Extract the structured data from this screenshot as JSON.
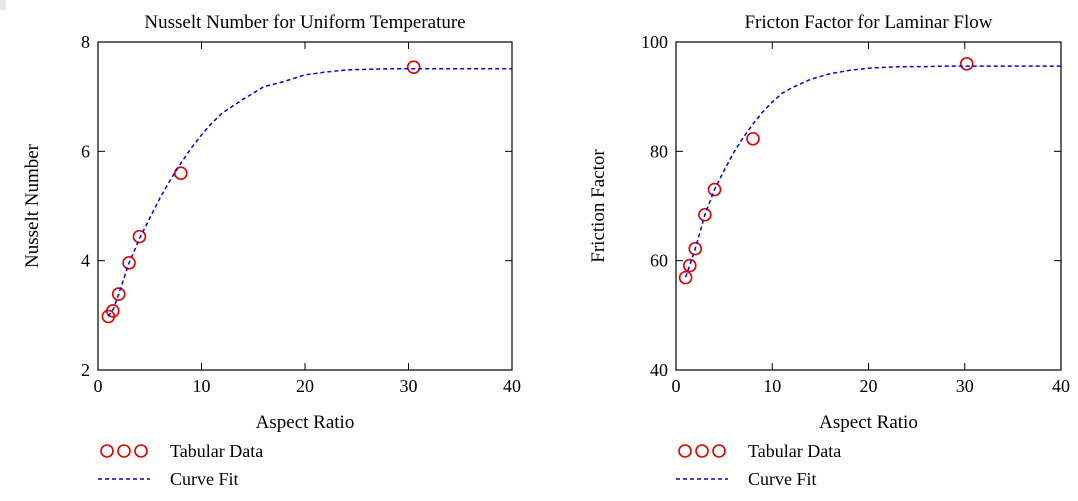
{
  "chart_data": [
    {
      "type": "scatter",
      "title": "Nusselt Number for Uniform Temperature",
      "xlabel": "Aspect Ratio",
      "ylabel": "Nusselt Number",
      "xlim": [
        0,
        40
      ],
      "ylim": [
        2,
        8
      ],
      "xticks": [
        "0",
        "10",
        "20",
        "30",
        "40"
      ],
      "yticks": [
        "2",
        "4",
        "6",
        "8"
      ],
      "grid": false,
      "legend_placement": "bottom-left",
      "series": [
        {
          "name": "Tabular Data",
          "kind": "markers",
          "color": "#e00000",
          "x": [
            1,
            1.43,
            2,
            3,
            4,
            8,
            30.5
          ],
          "y": [
            2.98,
            3.08,
            3.39,
            3.96,
            4.44,
            5.6,
            7.54
          ]
        },
        {
          "name": "Curve Fit",
          "kind": "dotted-line",
          "color": "#0000e0",
          "x": [
            1,
            1.5,
            2,
            3,
            4,
            5,
            6,
            7,
            8,
            9,
            10,
            11,
            12,
            14,
            16,
            18,
            20,
            22,
            24,
            26,
            28,
            30,
            32,
            34,
            36,
            38,
            40
          ],
          "y": [
            2.98,
            3.12,
            3.39,
            3.96,
            4.4,
            4.78,
            5.15,
            5.48,
            5.78,
            6.06,
            6.3,
            6.52,
            6.7,
            6.95,
            7.18,
            7.28,
            7.4,
            7.45,
            7.49,
            7.5,
            7.51,
            7.51,
            7.51,
            7.51,
            7.51,
            7.51,
            7.51
          ]
        }
      ]
    },
    {
      "type": "scatter",
      "title": "Fricton Factor for Laminar Flow",
      "xlabel": "Aspect Ratio",
      "ylabel": "Friction Factor",
      "xlim": [
        0,
        40
      ],
      "ylim": [
        40,
        100
      ],
      "xticks": [
        "0",
        "10",
        "20",
        "30",
        "40"
      ],
      "yticks": [
        "40",
        "60",
        "80",
        "100"
      ],
      "grid": false,
      "legend_placement": "bottom-left",
      "series": [
        {
          "name": "Tabular Data",
          "kind": "markers",
          "color": "#e00000",
          "x": [
            1,
            1.43,
            2,
            3,
            4,
            8,
            30.2
          ],
          "y": [
            56.9,
            59.1,
            62.2,
            68.4,
            73,
            82.3,
            96
          ]
        },
        {
          "name": "Curve Fit",
          "kind": "dotted-line",
          "color": "#0000e0",
          "x": [
            1,
            1.5,
            2,
            3,
            4,
            5,
            6,
            7,
            8,
            9,
            10,
            11,
            12,
            14,
            16,
            18,
            20,
            22,
            24,
            26,
            28,
            30,
            32,
            34,
            36,
            38,
            40
          ],
          "y": [
            57,
            59.5,
            62.2,
            68.4,
            73,
            76.5,
            79.8,
            82.6,
            85,
            87.2,
            89,
            90.6,
            91.6,
            93.2,
            94.2,
            94.8,
            95.2,
            95.4,
            95.5,
            95.5,
            95.6,
            95.6,
            95.6,
            95.6,
            95.6,
            95.6,
            95.6
          ]
        }
      ]
    }
  ]
}
